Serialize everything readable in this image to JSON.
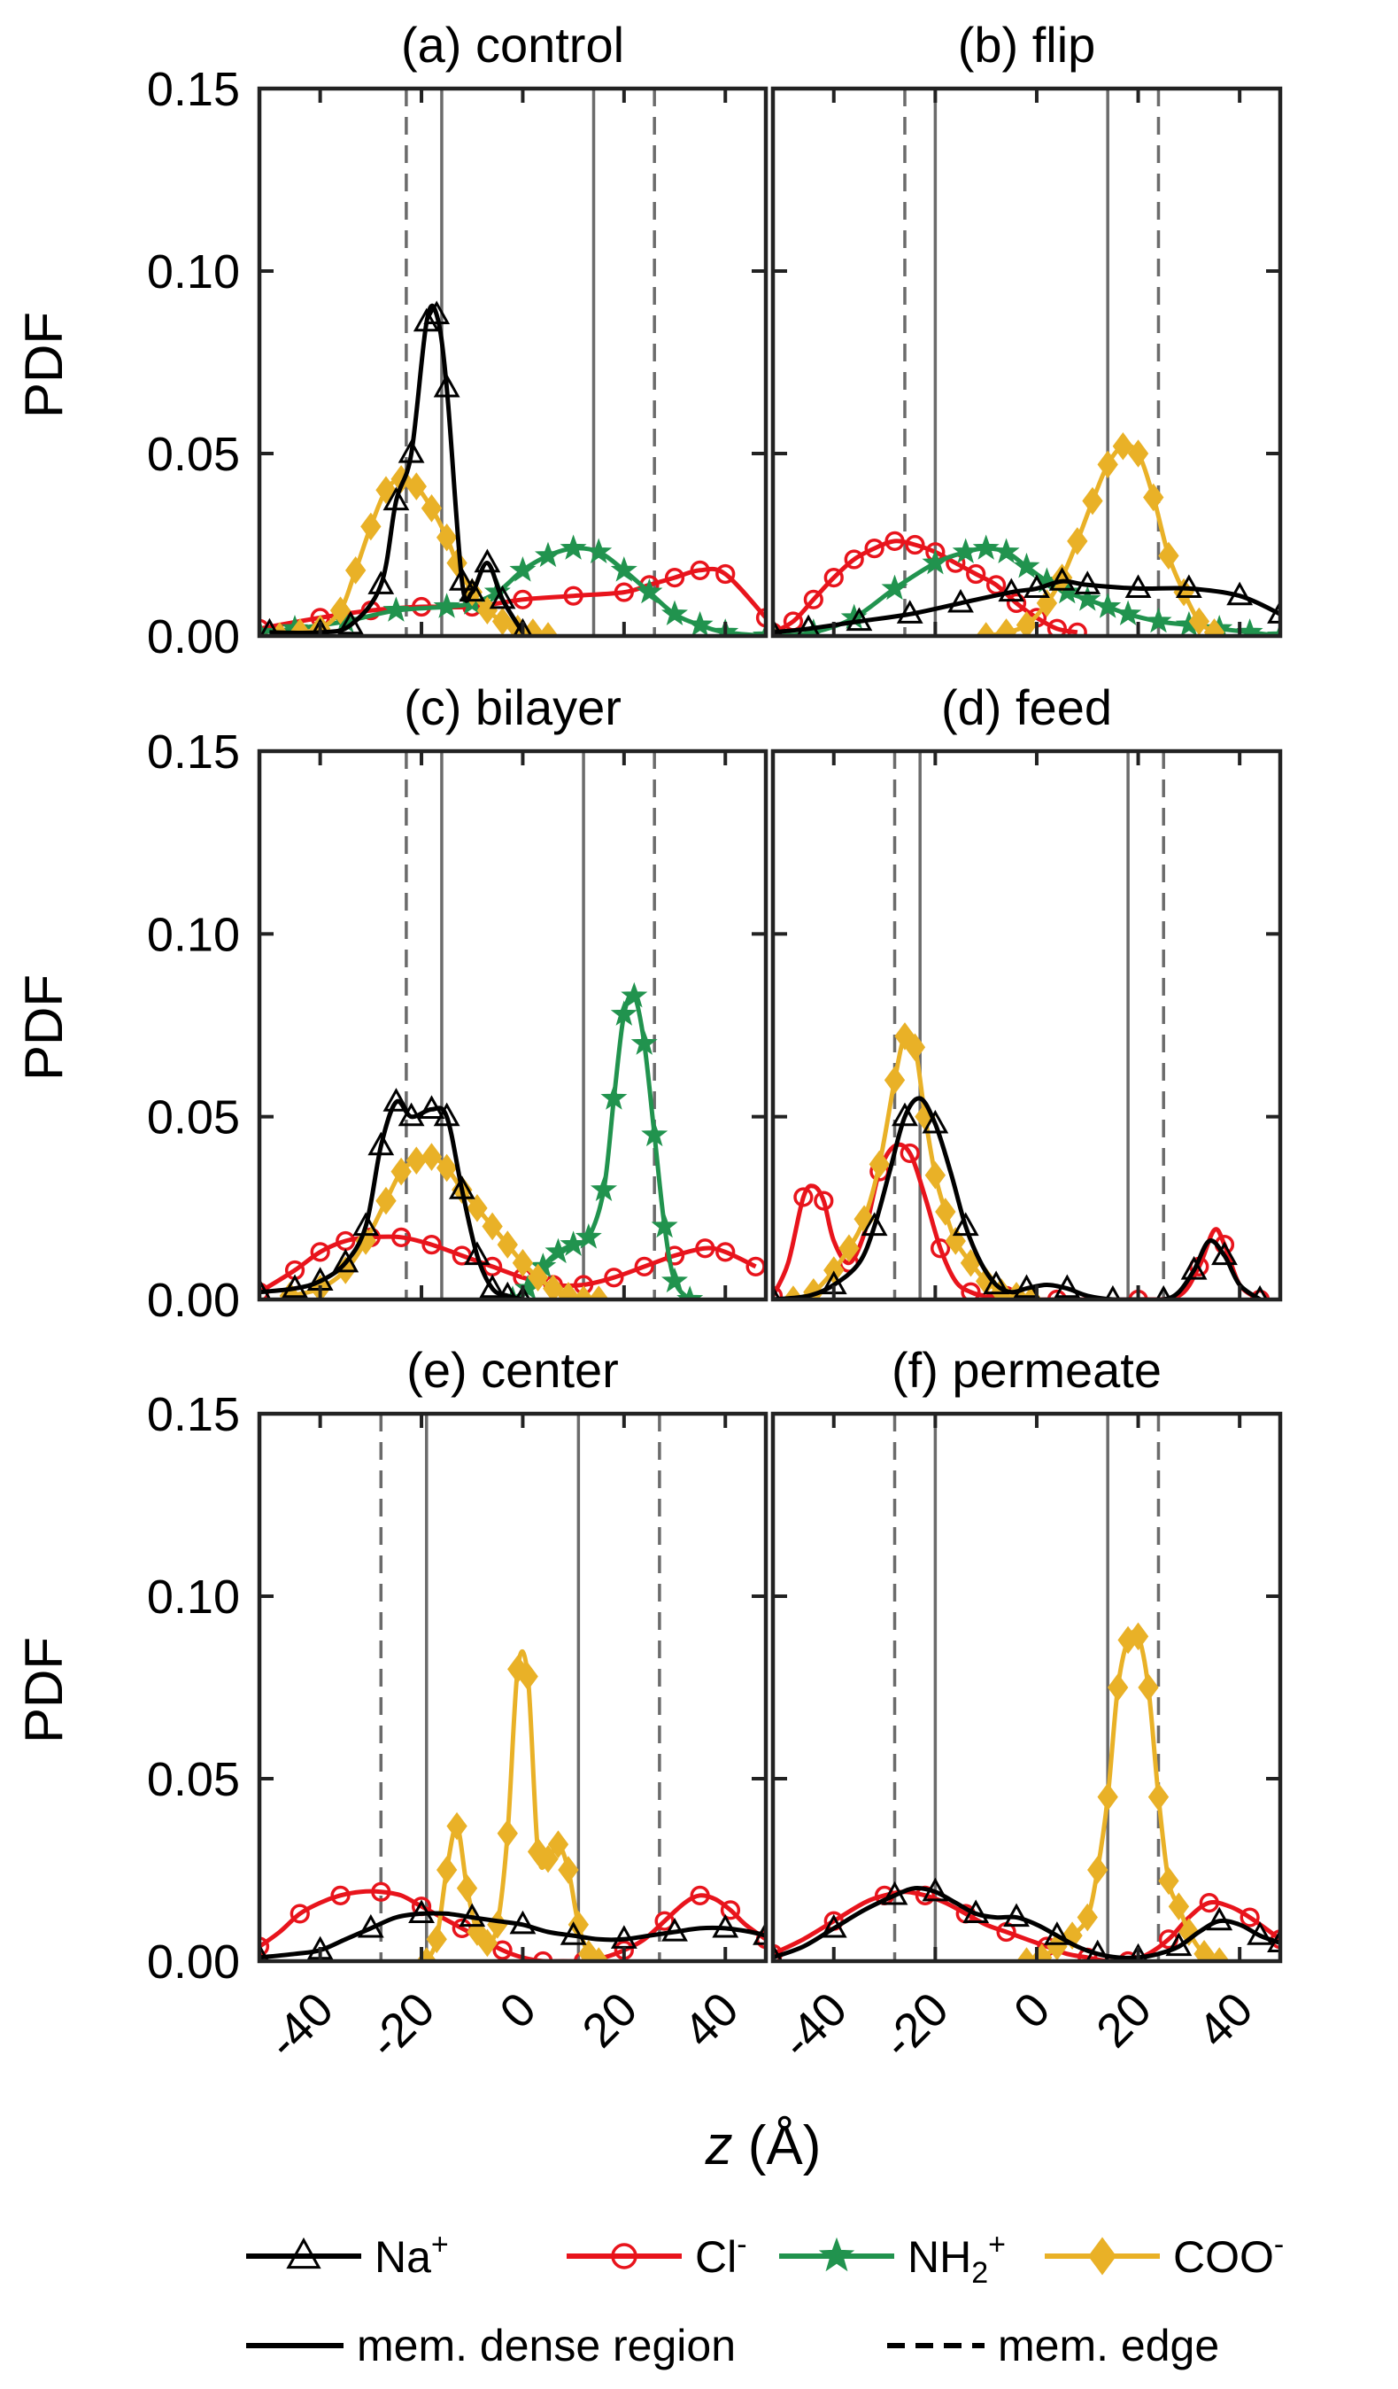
{
  "figure": {
    "xlabel_italic": "z",
    "xlabel_unit": " (Å)",
    "ylabel": "PDF"
  },
  "legend": {
    "entries": [
      {
        "key": "na",
        "label": "Na",
        "sup": "+",
        "sub": "",
        "color": "#000000",
        "marker": "triangle"
      },
      {
        "key": "cl",
        "label": "Cl",
        "sup": "-",
        "sub": "",
        "color": "#e8141c",
        "marker": "circle"
      },
      {
        "key": "nh2",
        "label": "NH",
        "sup": "+",
        "sub": "2",
        "color": "#21934e",
        "marker": "star"
      },
      {
        "key": "coo",
        "label": "COO",
        "sup": "-",
        "sub": "",
        "color": "#e9b127",
        "marker": "diamond"
      }
    ],
    "lines": [
      {
        "key": "dense",
        "label": "mem. dense region",
        "style": "solid"
      },
      {
        "key": "edge",
        "label": "mem. edge",
        "style": "dashed"
      }
    ]
  },
  "chart_data": [
    {
      "type": "line",
      "title": "(a) control",
      "xlim": [
        -52,
        48
      ],
      "ylim": [
        0,
        0.15
      ],
      "xticks": [
        -40,
        -20,
        0,
        20,
        40
      ],
      "yticks": [
        "0.00",
        "0.05",
        "0.10",
        "0.15"
      ],
      "dense_region": [
        -16,
        14
      ],
      "edge": [
        -23,
        26
      ],
      "series": [
        {
          "key": "na",
          "x": [
            -50,
            -40,
            -34,
            -28,
            -25,
            -22,
            -19,
            -17,
            -15,
            -12,
            -10,
            -7,
            -4,
            0
          ],
          "y": [
            0.001,
            0.001,
            0.003,
            0.014,
            0.037,
            0.05,
            0.086,
            0.088,
            0.068,
            0.015,
            0.012,
            0.02,
            0.01,
            0.001
          ]
        },
        {
          "key": "cl",
          "x": [
            -52,
            -40,
            -30,
            -20,
            -10,
            0,
            10,
            20,
            25,
            30,
            35,
            40,
            48
          ],
          "y": [
            0.002,
            0.005,
            0.007,
            0.008,
            0.008,
            0.01,
            0.011,
            0.012,
            0.014,
            0.016,
            0.018,
            0.017,
            0.005
          ]
        },
        {
          "key": "nh2",
          "x": [
            -52,
            -45,
            -35,
            -25,
            -15,
            -10,
            -5,
            0,
            5,
            10,
            15,
            20,
            25,
            30,
            35,
            40,
            48
          ],
          "y": [
            0.001,
            0.002,
            0.004,
            0.007,
            0.008,
            0.009,
            0.012,
            0.018,
            0.022,
            0.024,
            0.023,
            0.018,
            0.012,
            0.006,
            0.003,
            0.001,
            0.0
          ]
        },
        {
          "key": "coo",
          "x": [
            -48,
            -44,
            -40,
            -36,
            -33,
            -30,
            -27,
            -24,
            -21,
            -18,
            -15,
            -13,
            -10,
            -7,
            -4,
            -1,
            2,
            5
          ],
          "y": [
            0.0,
            0.001,
            0.002,
            0.007,
            0.018,
            0.03,
            0.04,
            0.043,
            0.041,
            0.035,
            0.027,
            0.02,
            0.012,
            0.007,
            0.004,
            0.002,
            0.001,
            0.0
          ]
        }
      ]
    },
    {
      "type": "line",
      "title": "(b) flip",
      "xlim": [
        -52,
        48
      ],
      "ylim": [
        0,
        0.15
      ],
      "xticks": [
        -40,
        -20,
        0,
        20,
        40
      ],
      "yticks": [
        "0.00",
        "0.05",
        "0.10",
        "0.15"
      ],
      "dense_region": [
        -20,
        14
      ],
      "edge": [
        -26,
        24
      ],
      "series": [
        {
          "key": "na",
          "x": [
            -52,
            -45,
            -35,
            -25,
            -15,
            -5,
            0,
            5,
            10,
            20,
            30,
            40,
            48
          ],
          "y": [
            0.001,
            0.002,
            0.004,
            0.006,
            0.009,
            0.012,
            0.013,
            0.015,
            0.014,
            0.013,
            0.013,
            0.011,
            0.006
          ]
        },
        {
          "key": "cl",
          "x": [
            -52,
            -48,
            -44,
            -40,
            -36,
            -32,
            -28,
            -24,
            -20,
            -16,
            -12,
            -8,
            -4,
            0,
            4,
            8
          ],
          "y": [
            0.001,
            0.004,
            0.01,
            0.016,
            0.021,
            0.024,
            0.026,
            0.025,
            0.023,
            0.02,
            0.017,
            0.014,
            0.009,
            0.005,
            0.002,
            0.001
          ]
        },
        {
          "key": "nh2",
          "x": [
            -52,
            -44,
            -36,
            -28,
            -20,
            -14,
            -10,
            -6,
            -2,
            2,
            6,
            10,
            14,
            18,
            24,
            30,
            36,
            42,
            48
          ],
          "y": [
            0.0,
            0.001,
            0.005,
            0.013,
            0.02,
            0.023,
            0.024,
            0.023,
            0.019,
            0.015,
            0.012,
            0.01,
            0.008,
            0.006,
            0.004,
            0.003,
            0.002,
            0.001,
            0.0
          ]
        },
        {
          "key": "coo",
          "x": [
            -10,
            -6,
            -2,
            2,
            5,
            8,
            11,
            14,
            17,
            20,
            23,
            26,
            29,
            32,
            35
          ],
          "y": [
            0.0,
            0.001,
            0.003,
            0.009,
            0.016,
            0.026,
            0.037,
            0.047,
            0.052,
            0.05,
            0.038,
            0.022,
            0.012,
            0.004,
            0.001
          ]
        }
      ]
    },
    {
      "type": "line",
      "title": "(c) bilayer",
      "xlim": [
        -52,
        48
      ],
      "ylim": [
        0,
        0.15
      ],
      "xticks": [
        -40,
        -20,
        0,
        20,
        40
      ],
      "yticks": [
        "0.00",
        "0.05",
        "0.10",
        "0.15"
      ],
      "dense_region": [
        -16,
        12
      ],
      "edge": [
        -23,
        26
      ],
      "series": [
        {
          "key": "na",
          "x": [
            -52,
            -45,
            -40,
            -35,
            -31,
            -28,
            -25,
            -22,
            -18,
            -15,
            -12,
            -9,
            -6,
            -3,
            0
          ],
          "y": [
            0.002,
            0.003,
            0.005,
            0.01,
            0.02,
            0.042,
            0.054,
            0.05,
            0.052,
            0.05,
            0.03,
            0.012,
            0.003,
            0.001,
            0.0
          ]
        },
        {
          "key": "cl",
          "x": [
            -52,
            -45,
            -40,
            -35,
            -30,
            -24,
            -18,
            -12,
            -6,
            0,
            6,
            12,
            18,
            24,
            30,
            36,
            40,
            46
          ],
          "y": [
            0.002,
            0.008,
            0.013,
            0.016,
            0.017,
            0.017,
            0.015,
            0.012,
            0.009,
            0.006,
            0.004,
            0.004,
            0.006,
            0.009,
            0.012,
            0.014,
            0.013,
            0.009
          ]
        },
        {
          "key": "nh2",
          "x": [
            -2,
            1,
            4,
            7,
            10,
            13,
            16,
            18,
            20,
            22,
            24,
            26,
            28,
            30,
            33
          ],
          "y": [
            0.0,
            0.003,
            0.009,
            0.013,
            0.015,
            0.017,
            0.03,
            0.055,
            0.078,
            0.083,
            0.07,
            0.045,
            0.02,
            0.005,
            0.0
          ]
        },
        {
          "key": "coo",
          "x": [
            -46,
            -40,
            -35,
            -31,
            -27,
            -24,
            -21,
            -18,
            -15,
            -12,
            -9,
            -6,
            -3,
            0,
            3,
            6,
            9,
            12,
            15
          ],
          "y": [
            0.001,
            0.003,
            0.008,
            0.016,
            0.027,
            0.035,
            0.038,
            0.039,
            0.036,
            0.03,
            0.025,
            0.02,
            0.015,
            0.01,
            0.006,
            0.003,
            0.001,
            0.0,
            0.0
          ]
        }
      ]
    },
    {
      "type": "line",
      "title": "(d) feed",
      "xlim": [
        -52,
        48
      ],
      "ylim": [
        0,
        0.15
      ],
      "xticks": [
        -40,
        -20,
        0,
        20,
        40
      ],
      "yticks": [
        "0.00",
        "0.05",
        "0.10",
        "0.15"
      ],
      "dense_region": [
        -23,
        18
      ],
      "edge": [
        -28,
        25
      ],
      "series": [
        {
          "key": "na",
          "x": [
            -52,
            -45,
            -40,
            -35,
            -32,
            -29,
            -26,
            -23,
            -20,
            -17,
            -14,
            -11,
            -8,
            -5,
            -2,
            2,
            6,
            10,
            15,
            20,
            25,
            28,
            31,
            34,
            37,
            40,
            44
          ],
          "y": [
            0.0,
            0.001,
            0.004,
            0.01,
            0.02,
            0.035,
            0.05,
            0.055,
            0.048,
            0.035,
            0.02,
            0.01,
            0.004,
            0.002,
            0.003,
            0.004,
            0.003,
            0.001,
            0.0,
            0.0,
            0.0,
            0.002,
            0.008,
            0.016,
            0.012,
            0.004,
            0.0
          ]
        },
        {
          "key": "cl",
          "x": [
            -52,
            -49,
            -46,
            -44,
            -42,
            -40,
            -37,
            -34,
            -31,
            -28,
            -25,
            -22,
            -19,
            -16,
            -13,
            -10,
            -6,
            -2,
            4,
            10,
            20,
            28,
            32,
            35,
            37,
            40,
            44
          ],
          "y": [
            0.001,
            0.01,
            0.028,
            0.031,
            0.027,
            0.016,
            0.01,
            0.018,
            0.035,
            0.042,
            0.04,
            0.028,
            0.014,
            0.005,
            0.002,
            0.001,
            0.001,
            0.0,
            0.0,
            0.0,
            0.0,
            0.001,
            0.009,
            0.019,
            0.015,
            0.004,
            0.0
          ]
        },
        {
          "key": "coo",
          "x": [
            -48,
            -44,
            -40,
            -37,
            -34,
            -31,
            -28,
            -26,
            -24,
            -22,
            -20,
            -18,
            -16,
            -13,
            -10,
            -7,
            -4,
            -1
          ],
          "y": [
            0.0,
            0.002,
            0.008,
            0.014,
            0.022,
            0.037,
            0.06,
            0.072,
            0.069,
            0.05,
            0.034,
            0.024,
            0.016,
            0.01,
            0.005,
            0.002,
            0.001,
            0.0
          ]
        }
      ]
    },
    {
      "type": "line",
      "title": "(e) center",
      "xlim": [
        -52,
        48
      ],
      "ylim": [
        0,
        0.15
      ],
      "xticks": [
        -40,
        -20,
        0,
        20,
        40
      ],
      "yticks": [
        "0.00",
        "0.05",
        "0.10",
        "0.15"
      ],
      "dense_region": [
        -19,
        11
      ],
      "edge": [
        -28,
        27
      ],
      "series": [
        {
          "key": "na",
          "x": [
            -52,
            -45,
            -40,
            -35,
            -30,
            -25,
            -20,
            -15,
            -10,
            -5,
            0,
            5,
            10,
            15,
            20,
            25,
            30,
            35,
            40,
            45,
            48
          ],
          "y": [
            0.001,
            0.002,
            0.003,
            0.006,
            0.009,
            0.012,
            0.013,
            0.013,
            0.012,
            0.011,
            0.01,
            0.008,
            0.007,
            0.006,
            0.006,
            0.007,
            0.008,
            0.009,
            0.009,
            0.008,
            0.007
          ]
        },
        {
          "key": "cl",
          "x": [
            -52,
            -48,
            -44,
            -40,
            -36,
            -32,
            -28,
            -24,
            -20,
            -16,
            -12,
            -8,
            -4,
            0,
            4,
            8,
            12,
            16,
            20,
            24,
            28,
            32,
            35,
            38,
            41,
            44,
            48
          ],
          "y": [
            0.004,
            0.008,
            0.013,
            0.016,
            0.018,
            0.019,
            0.019,
            0.018,
            0.015,
            0.012,
            0.009,
            0.006,
            0.003,
            0.001,
            0.0,
            0.0,
            0.0,
            0.001,
            0.003,
            0.006,
            0.011,
            0.016,
            0.018,
            0.017,
            0.014,
            0.01,
            0.006
          ]
        },
        {
          "key": "coo",
          "x": [
            -19,
            -17,
            -15,
            -13,
            -11,
            -9,
            -7,
            -5,
            -3,
            -1,
            1,
            3,
            5,
            7,
            9,
            11,
            13,
            15
          ],
          "y": [
            0.0,
            0.006,
            0.025,
            0.037,
            0.02,
            0.008,
            0.005,
            0.01,
            0.035,
            0.08,
            0.078,
            0.03,
            0.028,
            0.032,
            0.025,
            0.01,
            0.002,
            0.0
          ]
        }
      ]
    },
    {
      "type": "line",
      "title": "(f) permeate",
      "xlim": [
        -52,
        48
      ],
      "ylim": [
        0,
        0.15
      ],
      "xticks": [
        -40,
        -20,
        0,
        20,
        40
      ],
      "yticks": [
        "0.00",
        "0.05",
        "0.10",
        "0.15"
      ],
      "dense_region": [
        -20,
        14
      ],
      "edge": [
        -28,
        24
      ],
      "series": [
        {
          "key": "na",
          "x": [
            -52,
            -46,
            -40,
            -34,
            -28,
            -24,
            -20,
            -16,
            -12,
            -8,
            -4,
            0,
            4,
            8,
            12,
            16,
            20,
            24,
            28,
            32,
            36,
            40,
            44,
            48
          ],
          "y": [
            0.001,
            0.004,
            0.009,
            0.014,
            0.018,
            0.02,
            0.019,
            0.016,
            0.013,
            0.012,
            0.012,
            0.01,
            0.007,
            0.004,
            0.002,
            0.001,
            0.001,
            0.002,
            0.004,
            0.008,
            0.011,
            0.01,
            0.007,
            0.005
          ]
        },
        {
          "key": "cl",
          "x": [
            -52,
            -46,
            -40,
            -34,
            -30,
            -26,
            -22,
            -18,
            -14,
            -10,
            -6,
            -2,
            2,
            6,
            10,
            14,
            18,
            22,
            26,
            30,
            34,
            38,
            42,
            48
          ],
          "y": [
            0.002,
            0.006,
            0.011,
            0.016,
            0.018,
            0.019,
            0.018,
            0.016,
            0.013,
            0.01,
            0.008,
            0.006,
            0.004,
            0.002,
            0.001,
            0.0,
            0.0,
            0.002,
            0.006,
            0.012,
            0.016,
            0.015,
            0.012,
            0.006
          ]
        },
        {
          "key": "coo",
          "x": [
            -2,
            1,
            4,
            7,
            10,
            12,
            14,
            16,
            18,
            20,
            22,
            24,
            26,
            28,
            30,
            33,
            36
          ],
          "y": [
            0.0,
            0.001,
            0.004,
            0.007,
            0.012,
            0.025,
            0.045,
            0.075,
            0.088,
            0.089,
            0.075,
            0.045,
            0.022,
            0.015,
            0.008,
            0.002,
            0.0
          ]
        }
      ]
    }
  ]
}
